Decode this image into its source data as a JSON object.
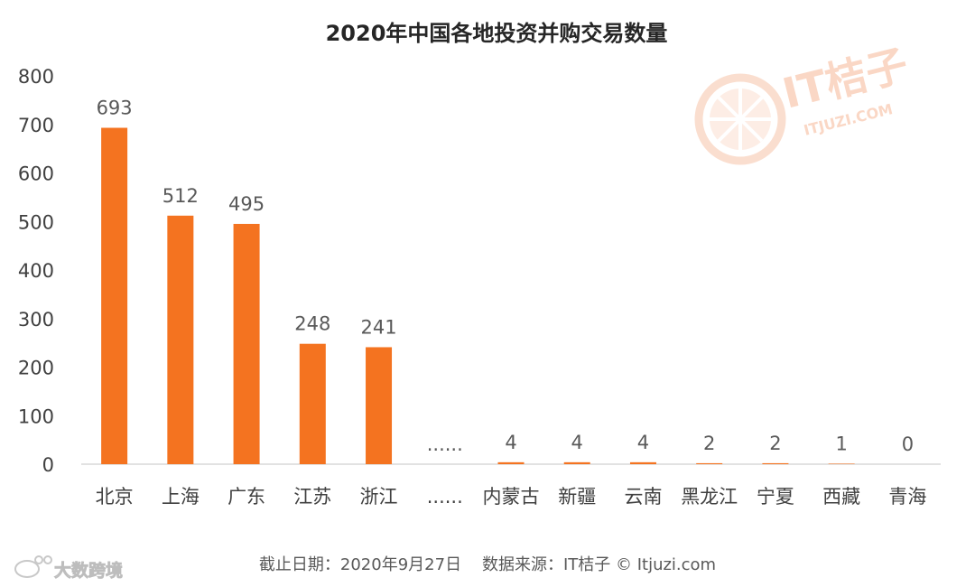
{
  "chart_data": {
    "type": "bar",
    "title": "2020年中国各地投资并购交易数量",
    "categories": [
      "北京",
      "上海",
      "广东",
      "江苏",
      "浙江",
      "......",
      "内蒙古",
      "新疆",
      "云南",
      "黑龙江",
      "宁夏",
      "西藏",
      "青海"
    ],
    "values": [
      693,
      512,
      495,
      248,
      241,
      null,
      4,
      4,
      4,
      2,
      2,
      1,
      0
    ],
    "value_labels": [
      "693",
      "512",
      "495",
      "248",
      "241",
      "......",
      "4",
      "4",
      "4",
      "2",
      "2",
      "1",
      "0"
    ],
    "ylim": [
      0,
      800
    ],
    "yticks": [
      0,
      100,
      200,
      300,
      400,
      500,
      600,
      700,
      800
    ],
    "grid": false,
    "bar_color": "#f47320"
  },
  "source_note": "截止日期：2020年9月27日    数据来源：IT桔子 © Itjuzi.com",
  "watermark": {
    "brand": "IT桔子",
    "site": "ITJUZI.COM",
    "icon": "orange-slice-icon"
  },
  "corner_mark": {
    "text": "大数跨境",
    "icon": "weibo-icon"
  }
}
